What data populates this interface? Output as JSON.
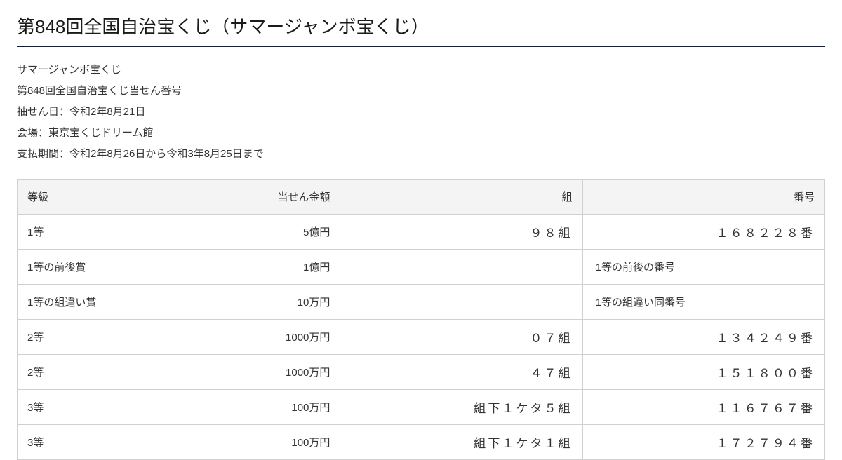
{
  "title": "第848回全国自治宝くじ（サマージャンボ宝くじ）",
  "info": {
    "line1": "サマージャンボ宝くじ",
    "line2": "第848回全国自治宝くじ当せん番号",
    "line3": "抽せん日：令和2年8月21日",
    "line4": "会場：東京宝くじドリーム館",
    "line5": "支払期間：令和2年8月26日から令和3年8月25日まで"
  },
  "table": {
    "headers": {
      "grade": "等級",
      "amount": "当せん金額",
      "kumi": "組",
      "number": "番号"
    },
    "rows": [
      {
        "grade": "1等",
        "amount": "5億円",
        "kumi": "９８組",
        "number": "１６８２２８番",
        "note": false
      },
      {
        "grade": "1等の前後賞",
        "amount": "1億円",
        "kumi": "",
        "number": "1等の前後の番号",
        "note": true
      },
      {
        "grade": "1等の組違い賞",
        "amount": "10万円",
        "kumi": "",
        "number": "1等の組違い同番号",
        "note": true
      },
      {
        "grade": "2等",
        "amount": "1000万円",
        "kumi": "０７組",
        "number": "１３４２４９番",
        "note": false
      },
      {
        "grade": "2等",
        "amount": "1000万円",
        "kumi": "４７組",
        "number": "１５１８００番",
        "note": false
      },
      {
        "grade": "3等",
        "amount": "100万円",
        "kumi": "組下１ケタ５組",
        "number": "１１６７６７番",
        "note": false
      },
      {
        "grade": "3等",
        "amount": "100万円",
        "kumi": "組下１ケタ１組",
        "number": "１７２７９４番",
        "note": false
      }
    ]
  },
  "colors": {
    "title_border": "#0a1f44",
    "cell_border": "#d0d0d0",
    "header_bg": "#f4f4f4",
    "text": "#333333",
    "background": "#ffffff"
  }
}
